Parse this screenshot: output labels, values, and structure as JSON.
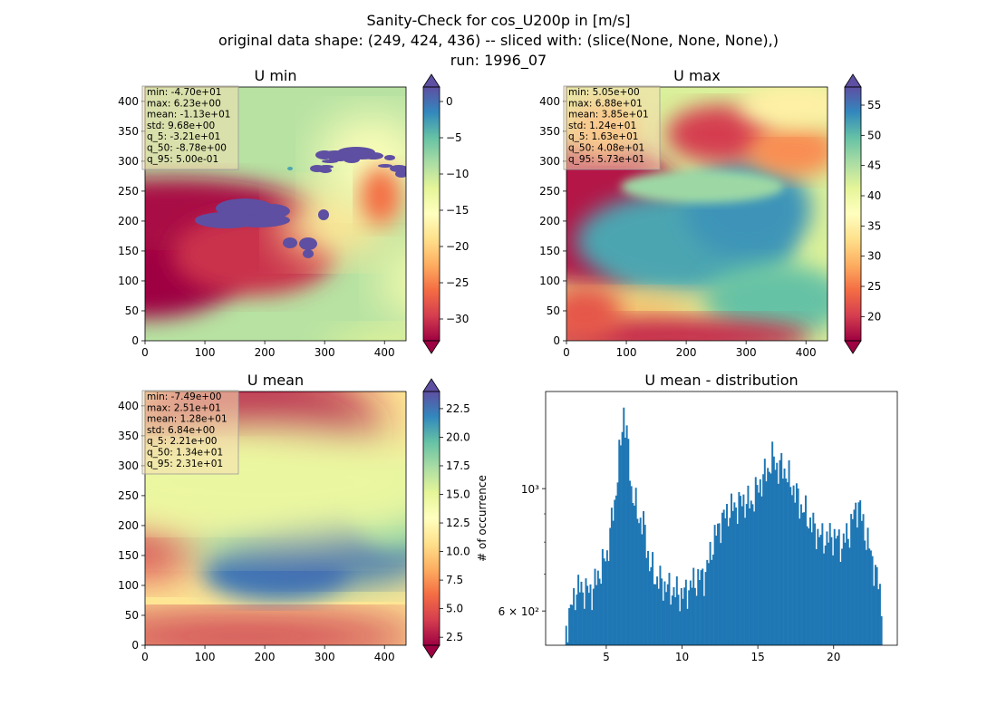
{
  "suptitle": {
    "line1": "Sanity-Check for cos_U200p in [m/s]",
    "line2": "original data shape: (249, 424, 436) -- sliced with: (slice(None, None, None),)",
    "line3": "run: 1996_07"
  },
  "chart_data": [
    {
      "type": "heatmap",
      "title": "U min",
      "x_ticks": [
        "0",
        "100",
        "200",
        "300",
        "400"
      ],
      "y_ticks": [
        "0",
        "50",
        "100",
        "150",
        "200",
        "250",
        "300",
        "350",
        "400"
      ],
      "xlim": [
        0,
        436
      ],
      "ylim": [
        0,
        424
      ],
      "colormap": "Spectral",
      "colorbar": {
        "ticks": [
          "0",
          "−5",
          "−10",
          "−15",
          "−20",
          "−25",
          "−30"
        ],
        "range": [
          -33,
          2
        ],
        "label": ""
      },
      "stats": [
        "min: -4.70e+01",
        "max: 6.23e+00",
        "mean: -1.13e+01",
        "std: 9.68e+00",
        "q_5: -3.21e+01",
        "q_50: -8.78e+00",
        "q_95: 5.00e-01"
      ]
    },
    {
      "type": "heatmap",
      "title": "U max",
      "x_ticks": [
        "0",
        "100",
        "200",
        "300",
        "400"
      ],
      "y_ticks": [
        "0",
        "50",
        "100",
        "150",
        "200",
        "250",
        "300",
        "350",
        "400"
      ],
      "xlim": [
        0,
        436
      ],
      "ylim": [
        0,
        424
      ],
      "colormap": "Spectral",
      "colorbar": {
        "ticks": [
          "55",
          "50",
          "45",
          "40",
          "35",
          "30",
          "25",
          "20"
        ],
        "range": [
          16,
          58
        ],
        "label": ""
      },
      "stats": [
        "min: 5.05e+00",
        "max: 6.88e+01",
        "mean: 3.85e+01",
        "std: 1.24e+01",
        "q_5: 1.63e+01",
        "q_50: 4.08e+01",
        "q_95: 5.73e+01"
      ]
    },
    {
      "type": "heatmap",
      "title": "U mean",
      "x_ticks": [
        "0",
        "100",
        "200",
        "300",
        "400"
      ],
      "y_ticks": [
        "0",
        "50",
        "100",
        "150",
        "200",
        "250",
        "300",
        "350",
        "400"
      ],
      "xlim": [
        0,
        436
      ],
      "ylim": [
        0,
        424
      ],
      "colormap": "Spectral",
      "colorbar": {
        "ticks": [
          "22.5",
          "20.0",
          "17.5",
          "15.0",
          "12.5",
          "10.0",
          "7.5",
          "5.0",
          "2.5"
        ],
        "range": [
          1.8,
          24.0
        ],
        "label": "# of occurrence"
      },
      "stats": [
        "min: -7.49e+00",
        "max: 2.51e+01",
        "mean: 1.28e+01",
        "std: 6.84e+00",
        "q_5: 2.21e+00",
        "q_50: 1.34e+01",
        "q_95: 2.31e+01"
      ]
    },
    {
      "type": "bar",
      "title": "U mean - distribution",
      "x_ticks": [
        "5",
        "10",
        "15",
        "20"
      ],
      "y_ticks": [
        "10³",
        "6 × 10²"
      ],
      "yscale": "log",
      "xlim": [
        1.0,
        24.2
      ],
      "ylim": [
        520,
        1500
      ],
      "color": "#1f77b4",
      "bins": {
        "x": [
          2.3,
          3.0,
          4.0,
          5.0,
          5.5,
          5.9,
          6.1,
          6.3,
          6.6,
          7.0,
          7.4,
          7.8,
          8.2,
          9.0,
          10.0,
          10.8,
          11.5,
          12.0,
          12.5,
          13.0,
          14.0,
          14.5,
          15.0,
          15.5,
          16.0,
          16.3,
          16.6,
          16.9,
          17.3,
          17.8,
          18.5,
          19.2,
          20.0,
          20.5,
          21.0,
          21.3,
          21.6,
          21.9,
          22.3,
          22.8,
          23.0,
          23.1
        ],
        "y": [
          560,
          660,
          650,
          760,
          940,
          1200,
          1390,
          1250,
          1000,
          900,
          860,
          730,
          690,
          660,
          640,
          680,
          700,
          800,
          870,
          910,
          950,
          940,
          1010,
          1070,
          1140,
          1080,
          1100,
          1050,
          1000,
          930,
          860,
          810,
          820,
          790,
          840,
          900,
          940,
          860,
          780,
          690,
          650,
          620
        ]
      }
    }
  ]
}
